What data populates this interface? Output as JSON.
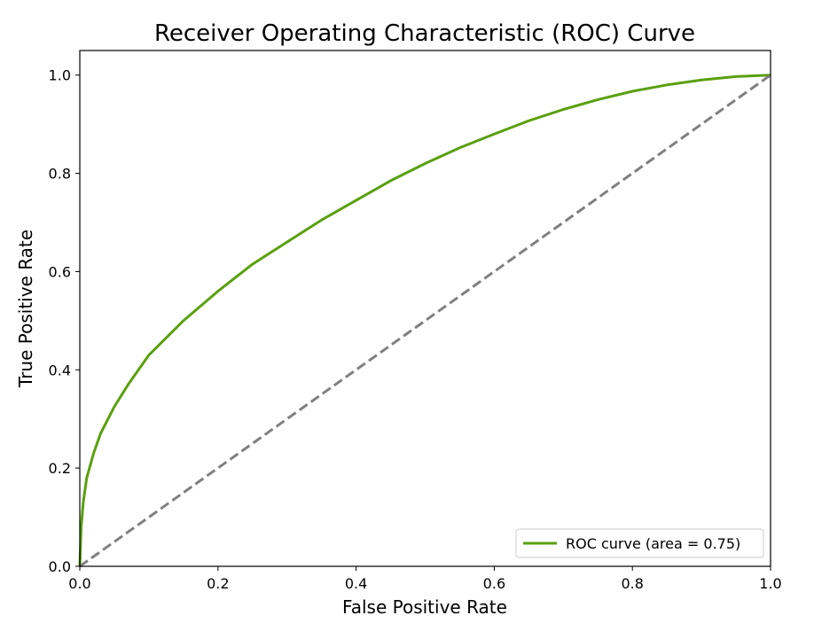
{
  "chart_data": {
    "type": "line",
    "title": "Receiver Operating Characteristic (ROC) Curve",
    "xlabel": "False Positive Rate",
    "ylabel": "True Positive Rate",
    "xlim": [
      0.0,
      1.0
    ],
    "ylim": [
      0.0,
      1.05
    ],
    "x_ticks": [
      "0.0",
      "0.2",
      "0.4",
      "0.6",
      "0.8",
      "1.0"
    ],
    "y_ticks": [
      "0.0",
      "0.2",
      "0.4",
      "0.6",
      "0.8",
      "1.0"
    ],
    "grid": false,
    "legend_position": "lower right",
    "series": [
      {
        "name": "ROC curve (area = 0.75)",
        "color": "#5aa00f",
        "style": "solid",
        "x": [
          0.0,
          0.002,
          0.005,
          0.01,
          0.02,
          0.03,
          0.05,
          0.07,
          0.1,
          0.15,
          0.2,
          0.25,
          0.3,
          0.35,
          0.4,
          0.45,
          0.5,
          0.55,
          0.6,
          0.65,
          0.7,
          0.75,
          0.8,
          0.85,
          0.9,
          0.95,
          1.0
        ],
        "y": [
          0.0,
          0.08,
          0.13,
          0.18,
          0.23,
          0.27,
          0.325,
          0.37,
          0.43,
          0.5,
          0.56,
          0.615,
          0.66,
          0.705,
          0.745,
          0.785,
          0.82,
          0.852,
          0.88,
          0.907,
          0.93,
          0.95,
          0.967,
          0.98,
          0.99,
          0.997,
          1.0
        ]
      },
      {
        "color": "#808080",
        "style": "dashed",
        "x": [
          0.0,
          1.0
        ],
        "y": [
          0.0,
          1.0
        ]
      }
    ]
  }
}
